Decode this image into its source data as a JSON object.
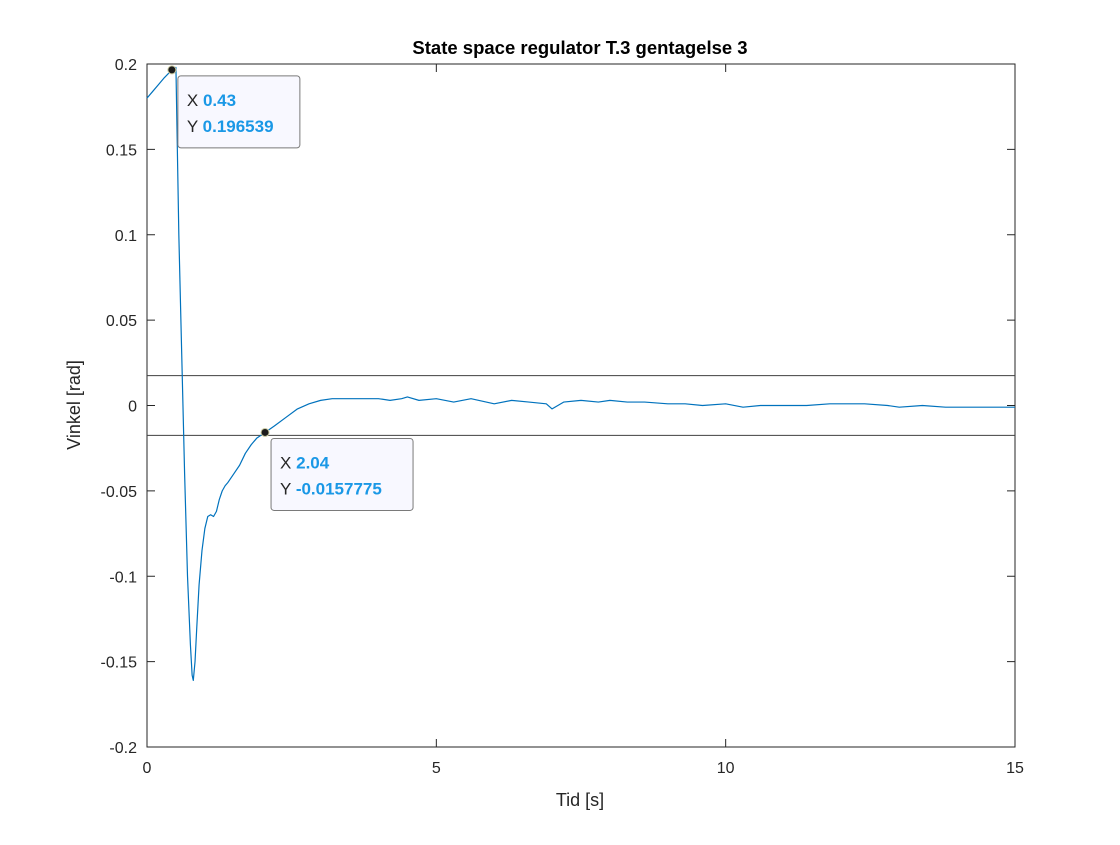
{
  "chart_data": {
    "type": "line",
    "title": "State space regulator T.3 gentagelse 3",
    "xlabel": "Tid [s]",
    "ylabel": "Vinkel [rad]",
    "xlim": [
      0,
      15
    ],
    "ylim": [
      -0.2,
      0.2
    ],
    "xticks": [
      0,
      5,
      10,
      15
    ],
    "xtick_labels": [
      "0",
      "5",
      "10",
      "15"
    ],
    "yticks": [
      0.2,
      0.15,
      0.1,
      0.05,
      0,
      -0.05,
      -0.1,
      -0.15,
      -0.2
    ],
    "ytick_labels": [
      "0.2",
      "0.15",
      "0.1",
      "0.05",
      "0",
      "-0.05",
      "-0.1",
      "-0.15",
      "-0.2"
    ],
    "grid": false,
    "box": true,
    "line_color": "#0072BD",
    "hlines": [
      0.0175,
      -0.0175
    ],
    "series": [
      {
        "x": [
          0,
          0.1,
          0.2,
          0.3,
          0.43,
          0.5,
          0.55,
          0.6,
          0.65,
          0.7,
          0.75,
          0.78,
          0.8,
          0.83,
          0.86,
          0.9,
          0.95,
          1.0,
          1.05,
          1.1,
          1.15,
          1.2,
          1.25,
          1.3,
          1.35,
          1.4,
          1.5,
          1.6,
          1.7,
          1.8,
          1.9,
          2.04,
          2.2,
          2.4,
          2.6,
          2.8,
          3.0,
          3.2,
          3.4,
          3.6,
          3.8,
          4.0,
          4.2,
          4.4,
          4.5,
          4.7,
          5.0,
          5.3,
          5.6,
          6.0,
          6.3,
          6.6,
          6.9,
          7.0,
          7.2,
          7.5,
          7.8,
          8.0,
          8.3,
          8.6,
          9.0,
          9.3,
          9.6,
          10.0,
          10.3,
          10.6,
          11.0,
          11.4,
          11.8,
          12.0,
          12.4,
          12.8,
          13.0,
          13.4,
          13.8,
          14.0,
          14.4,
          14.8,
          15.0
        ],
        "y": [
          0.18,
          0.184,
          0.188,
          0.192,
          0.1965,
          0.198,
          0.1,
          0.03,
          -0.04,
          -0.1,
          -0.14,
          -0.158,
          -0.161,
          -0.15,
          -0.13,
          -0.105,
          -0.085,
          -0.072,
          -0.065,
          -0.064,
          -0.065,
          -0.062,
          -0.055,
          -0.05,
          -0.047,
          -0.045,
          -0.04,
          -0.035,
          -0.028,
          -0.023,
          -0.019,
          -0.0158,
          -0.012,
          -0.007,
          -0.002,
          0.001,
          0.003,
          0.004,
          0.004,
          0.004,
          0.004,
          0.004,
          0.003,
          0.004,
          0.005,
          0.003,
          0.004,
          0.002,
          0.004,
          0.001,
          0.003,
          0.002,
          0.001,
          -0.002,
          0.002,
          0.003,
          0.002,
          0.003,
          0.002,
          0.002,
          0.001,
          0.001,
          0.0,
          0.001,
          -0.001,
          0.0,
          0.0,
          0.0,
          0.001,
          0.001,
          0.001,
          0.0,
          -0.001,
          0.0,
          -0.001,
          -0.001,
          -0.001,
          -0.001,
          -0.001
        ]
      }
    ],
    "datatips": [
      {
        "x": 0.43,
        "y": 0.196539,
        "x_label": "X",
        "y_label": "Y",
        "x_text": "0.43",
        "y_text": "0.196539"
      },
      {
        "x": 2.04,
        "y": -0.0157775,
        "x_label": "X",
        "y_label": "Y",
        "x_text": "2.04",
        "y_text": "-0.0157775"
      }
    ]
  }
}
